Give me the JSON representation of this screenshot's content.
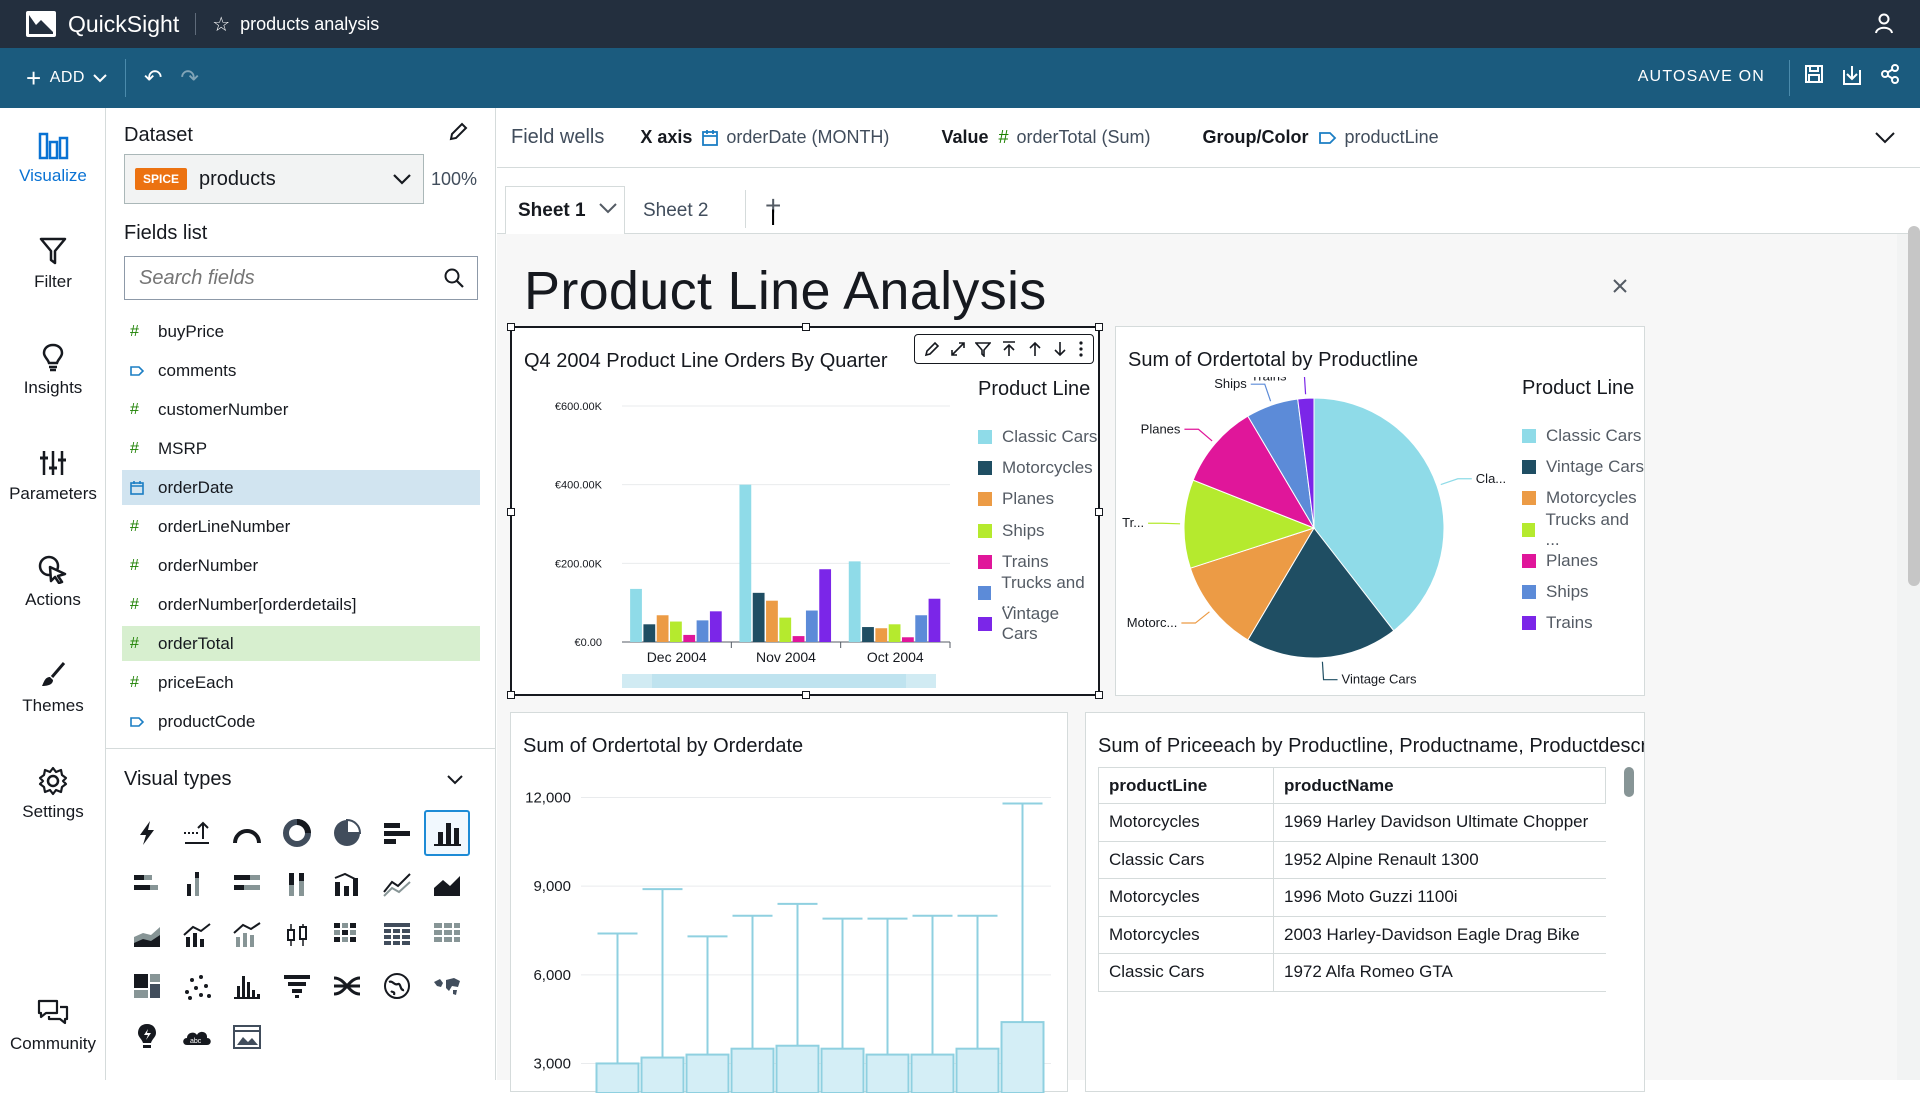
{
  "app": {
    "brand": "QuickSight",
    "analysis_name": "products analysis"
  },
  "toolbar": {
    "add_label": "ADD",
    "autosave": "AUTOSAVE ON"
  },
  "nav": [
    {
      "label": "Visualize",
      "icon": "bar-chart-icon"
    },
    {
      "label": "Filter",
      "icon": "funnel-icon"
    },
    {
      "label": "Insights",
      "icon": "lightbulb-icon"
    },
    {
      "label": "Parameters",
      "icon": "sliders-icon"
    },
    {
      "label": "Actions",
      "icon": "cursor-click-icon"
    },
    {
      "label": "Themes",
      "icon": "brush-icon"
    },
    {
      "label": "Settings",
      "icon": "gear-icon"
    },
    {
      "label": "Community",
      "icon": "chat-icon"
    }
  ],
  "dataset": {
    "title": "Dataset",
    "badge": "SPICE",
    "name": "products",
    "percent": "100%"
  },
  "fields_list": {
    "title": "Fields list",
    "search_placeholder": "Search fields",
    "items": [
      {
        "name": "buyPrice",
        "type": "#"
      },
      {
        "name": "comments",
        "type": "dim"
      },
      {
        "name": "customerNumber",
        "type": "#"
      },
      {
        "name": "MSRP",
        "type": "#"
      },
      {
        "name": "orderDate",
        "type": "date"
      },
      {
        "name": "orderLineNumber",
        "type": "#"
      },
      {
        "name": "orderNumber",
        "type": "#"
      },
      {
        "name": "orderNumber[orderdetails]",
        "type": "#"
      },
      {
        "name": "orderTotal",
        "type": "#"
      },
      {
        "name": "priceEach",
        "type": "#"
      },
      {
        "name": "productCode",
        "type": "dim"
      }
    ]
  },
  "visual_types": {
    "title": "Visual types"
  },
  "field_wells": {
    "title": "Field wells",
    "x_axis_label": "X axis",
    "x_axis_value": "orderDate (MONTH)",
    "value_label": "Value",
    "value_value": "orderTotal (Sum)",
    "group_label": "Group/Color",
    "group_value": "productLine"
  },
  "sheets": {
    "tab1": "Sheet 1",
    "tab2": "Sheet 2"
  },
  "sheet_title": "Product Line Analysis",
  "visual1": {
    "title": "Q4 2004 Product Line Orders By Quarter",
    "legend_title": "Product Line",
    "legend": [
      "Classic Cars",
      "Motorcycles",
      "Planes",
      "Ships",
      "Trains",
      "Trucks and ...",
      "Vintage Cars"
    ]
  },
  "visual2": {
    "title": "Sum of Ordertotal by Productline",
    "legend_title": "Product Line",
    "legend": [
      "Classic Cars",
      "Vintage Cars",
      "Motorcycles",
      "Trucks and ...",
      "Planes",
      "Ships",
      "Trains"
    ],
    "slice_labels": [
      "Cla...",
      "Vintage Cars",
      "Motorc...",
      "Tr...",
      "Planes",
      "Ships",
      "Trains"
    ]
  },
  "visual3": {
    "title": "Sum of Ordertotal by Orderdate"
  },
  "visual4": {
    "title": "Sum of Priceeach by Productline, Productname, Productdescriptio...",
    "columns": [
      "productLine",
      "productName"
    ],
    "rows": [
      [
        "Motorcycles",
        "1969 Harley Davidson Ultimate Chopper"
      ],
      [
        "Classic Cars",
        "1952 Alpine Renault 1300"
      ],
      [
        "Motorcycles",
        "1996 Moto Guzzi 1100i"
      ],
      [
        "Motorcycles",
        "2003 Harley-Davidson Eagle Drag Bike"
      ],
      [
        "Classic Cars",
        "1972 Alfa Romeo GTA"
      ]
    ]
  },
  "chart_data": [
    {
      "type": "bar",
      "title": "Q4 2004 Product Line Orders By Quarter",
      "categories": [
        "Dec 2004",
        "Nov 2004",
        "Oct 2004"
      ],
      "ylim": [
        0,
        600000
      ],
      "yticks": [
        "€0.00",
        "€200.00K",
        "€400.00K",
        "€600.00K"
      ],
      "series": [
        {
          "name": "Classic Cars",
          "color": "#8fdbe8",
          "values": [
            135000,
            400000,
            205000
          ]
        },
        {
          "name": "Motorcycles",
          "color": "#1f4e63",
          "values": [
            45000,
            125000,
            38000
          ]
        },
        {
          "name": "Planes",
          "color": "#ec9b45",
          "values": [
            68000,
            105000,
            35000
          ]
        },
        {
          "name": "Ships",
          "color": "#b5ea2e",
          "values": [
            52000,
            62000,
            45000
          ]
        },
        {
          "name": "Trains",
          "color": "#e0169a",
          "values": [
            18000,
            15000,
            12000
          ]
        },
        {
          "name": "Trucks and Buses",
          "color": "#5c8bd8",
          "values": [
            55000,
            80000,
            68000
          ]
        },
        {
          "name": "Vintage Cars",
          "color": "#7b26e8",
          "values": [
            78000,
            185000,
            110000
          ]
        }
      ]
    },
    {
      "type": "pie",
      "title": "Sum of Ordertotal by Productline",
      "slices": [
        {
          "name": "Classic Cars",
          "value": 39.5,
          "color": "#8fdbe8"
        },
        {
          "name": "Vintage Cars",
          "value": 19.0,
          "color": "#1f4e63"
        },
        {
          "name": "Motorcycles",
          "value": 11.5,
          "color": "#ec9b45"
        },
        {
          "name": "Trucks and Buses",
          "value": 11.0,
          "color": "#b5ea2e"
        },
        {
          "name": "Planes",
          "value": 10.5,
          "color": "#e0169a"
        },
        {
          "name": "Ships",
          "value": 6.5,
          "color": "#5c8bd8"
        },
        {
          "name": "Trains",
          "value": 2.0,
          "color": "#7b26e8"
        }
      ]
    },
    {
      "type": "boxplot",
      "title": "Sum of Ordertotal by Orderdate",
      "ylim": [
        2000,
        13000
      ],
      "yticks": [
        "3,000",
        "6,000",
        "9,000",
        "12,000"
      ],
      "boxes": [
        {
          "whisker_high": 7400,
          "q3": 3000
        },
        {
          "whisker_high": 8900,
          "q3": 3200
        },
        {
          "whisker_high": 7300,
          "q3": 3300
        },
        {
          "whisker_high": 8000,
          "q3": 3500
        },
        {
          "whisker_high": 8400,
          "q3": 3600
        },
        {
          "whisker_high": 7900,
          "q3": 3500
        },
        {
          "whisker_high": 7900,
          "q3": 3300
        },
        {
          "whisker_high": 8000,
          "q3": 3300
        },
        {
          "whisker_high": 8000,
          "q3": 3500
        },
        {
          "whisker_high": 11800,
          "q3": 4400
        }
      ]
    }
  ]
}
